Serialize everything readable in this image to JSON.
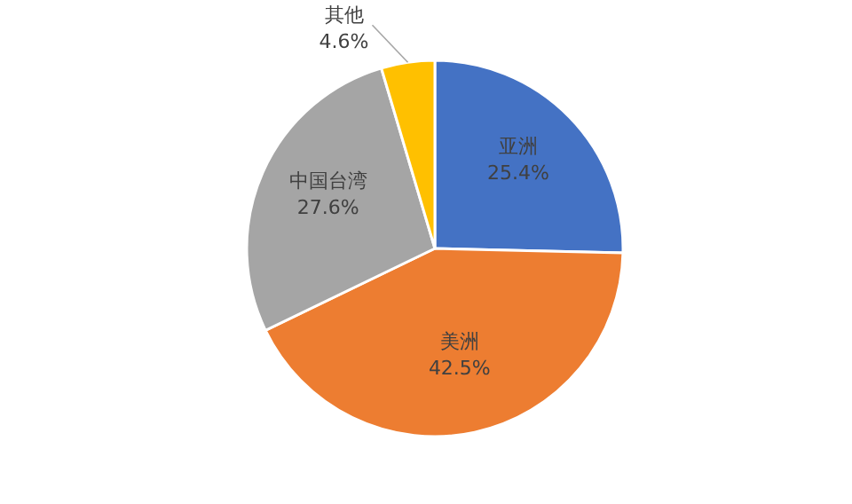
{
  "chart_data": {
    "type": "pie",
    "categories": [
      "亚洲",
      "美洲",
      "中国台湾",
      "其他"
    ],
    "values": [
      25.4,
      42.5,
      27.6,
      4.6
    ],
    "colors": [
      "#4472c4",
      "#ed7d31",
      "#a5a5a5",
      "#ffc000"
    ],
    "value_labels": [
      "25.4%",
      "42.5%",
      "27.6%",
      "4.6%"
    ]
  }
}
